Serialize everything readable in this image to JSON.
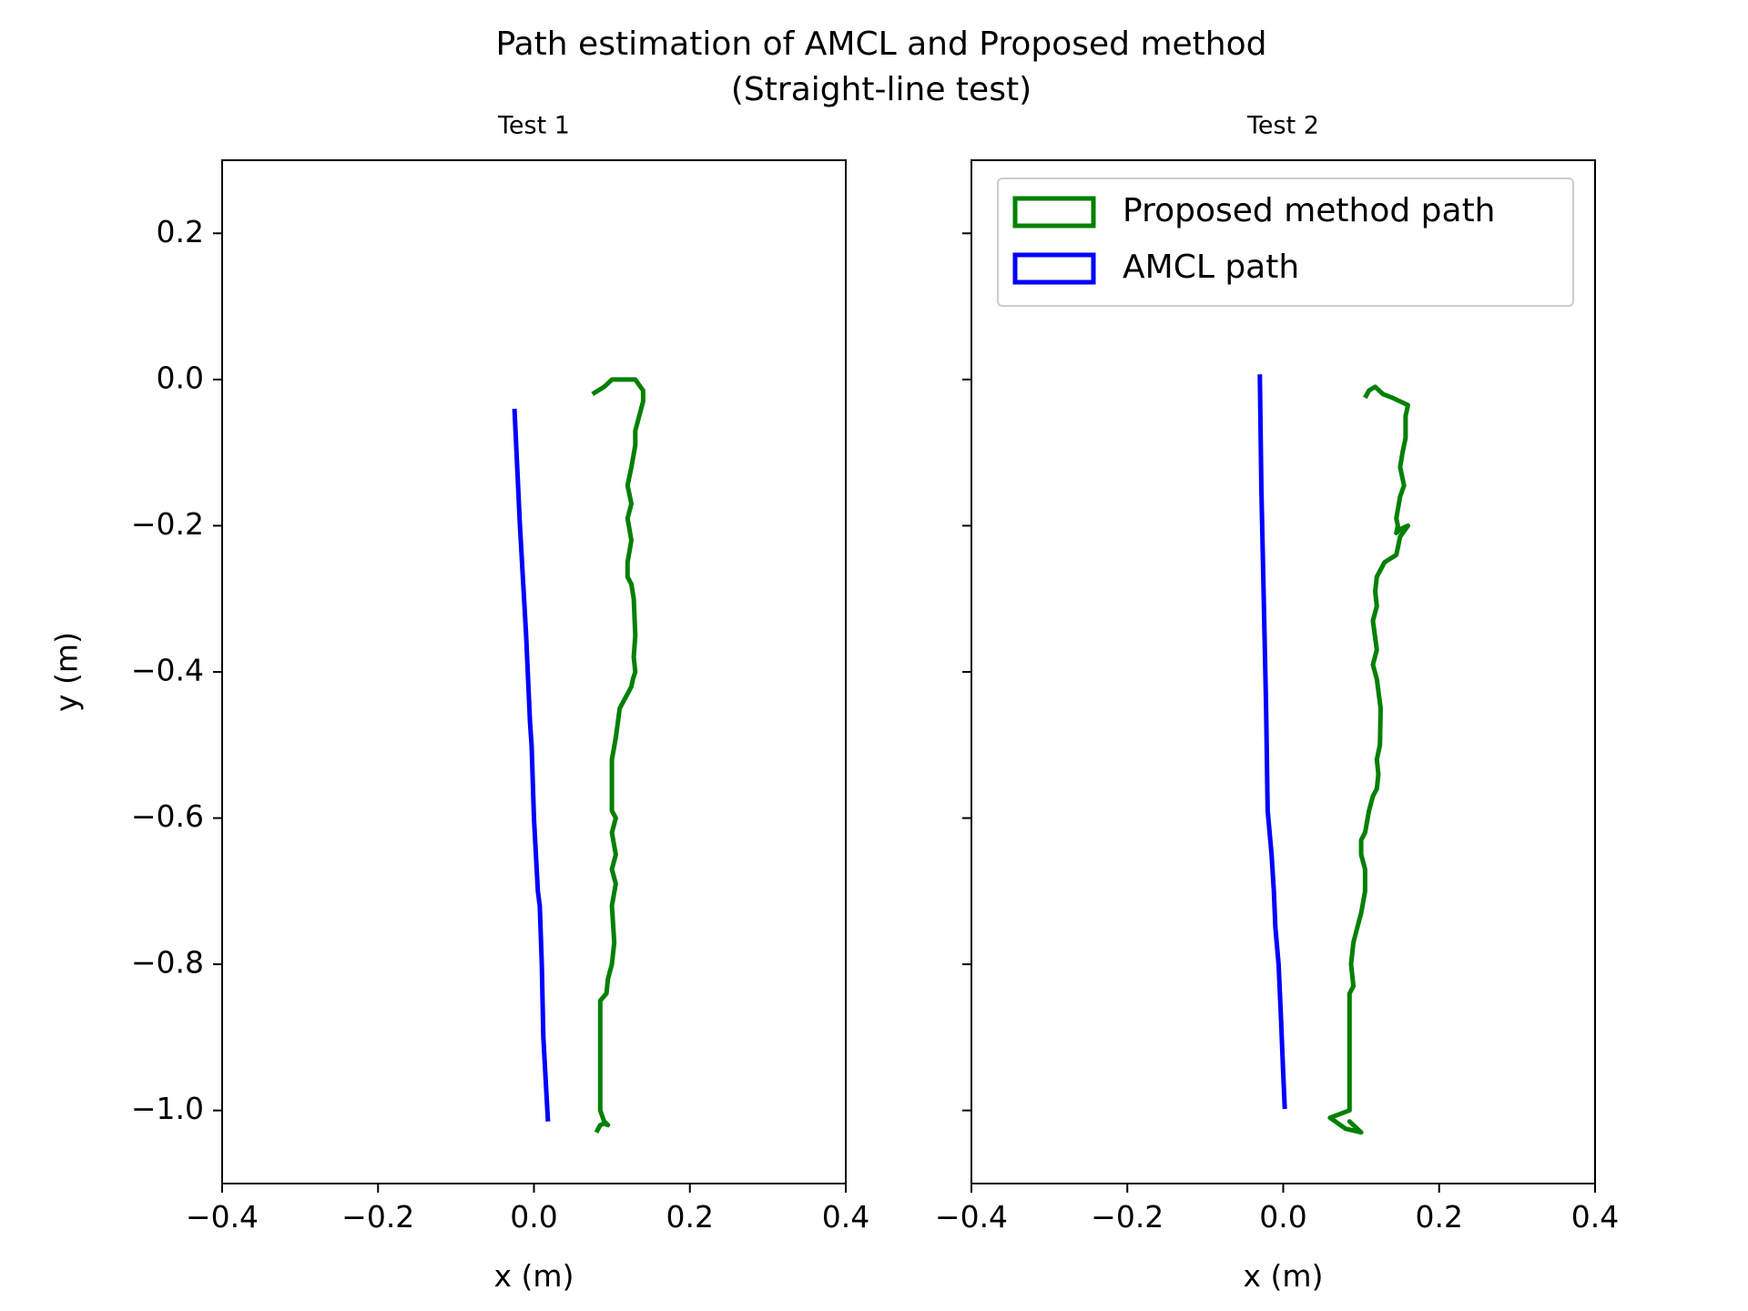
{
  "figure": {
    "title_line1": "Path estimation of AMCL and Proposed method",
    "title_line2": "(Straight-line test)"
  },
  "colors": {
    "proposed": "#008000",
    "amcl": "#0000ff",
    "axes": "#000000"
  },
  "legend": {
    "placement": "upper right of Test 2",
    "items": [
      {
        "label": "Proposed method path",
        "color": "#008000"
      },
      {
        "label": "AMCL path",
        "color": "#0000ff"
      }
    ]
  },
  "chart_data": [
    {
      "type": "line",
      "title": "Test 1",
      "xlabel": "x (m)",
      "ylabel": "y (m)",
      "xlim": [
        -0.4,
        0.4
      ],
      "ylim": [
        -1.1,
        0.3
      ],
      "xticks": [
        -0.4,
        -0.2,
        0.0,
        0.2,
        0.4
      ],
      "xtick_labels": [
        "−0.4",
        "−0.2",
        "0.0",
        "0.2",
        "0.4"
      ],
      "yticks": [
        0.2,
        0.0,
        -0.2,
        -0.4,
        -0.6,
        -0.8,
        -1.0
      ],
      "ytick_labels": [
        "0.2",
        "0.0",
        "−0.2",
        "−0.4",
        "−0.6",
        "−0.8",
        "−1.0"
      ],
      "show_ytick_labels": true,
      "grid": false,
      "series": [
        {
          "name": "Proposed method path",
          "color": "#008000",
          "x": [
            0.075,
            0.09,
            0.1,
            0.115,
            0.13,
            0.14,
            0.14,
            0.135,
            0.13,
            0.13,
            0.125,
            0.12,
            0.125,
            0.12,
            0.125,
            0.12,
            0.12,
            0.125,
            0.128,
            0.13,
            0.128,
            0.13,
            0.127,
            0.125,
            0.12,
            0.11,
            0.105,
            0.1,
            0.1,
            0.1,
            0.105,
            0.1,
            0.105,
            0.1,
            0.105,
            0.1,
            0.103,
            0.1,
            0.095,
            0.093,
            0.085,
            0.085,
            0.085,
            0.085,
            0.09,
            0.095,
            0.09,
            0.085,
            0.08
          ],
          "y": [
            -0.02,
            -0.01,
            0.0,
            0.0,
            0.0,
            -0.015,
            -0.03,
            -0.05,
            -0.07,
            -0.09,
            -0.12,
            -0.145,
            -0.17,
            -0.19,
            -0.22,
            -0.25,
            -0.27,
            -0.28,
            -0.3,
            -0.35,
            -0.38,
            -0.4,
            -0.41,
            -0.42,
            -0.43,
            -0.45,
            -0.49,
            -0.52,
            -0.56,
            -0.59,
            -0.6,
            -0.62,
            -0.65,
            -0.67,
            -0.69,
            -0.72,
            -0.77,
            -0.8,
            -0.82,
            -0.84,
            -0.85,
            -0.9,
            -0.95,
            -1.0,
            -1.015,
            -1.02,
            -1.018,
            -1.02,
            -1.03
          ]
        },
        {
          "name": "AMCL path",
          "color": "#0000ff",
          "x": [
            -0.025,
            -0.018,
            -0.01,
            -0.005,
            -0.003,
            0.0,
            0.005,
            0.0075,
            0.01,
            0.012,
            0.018
          ],
          "y": [
            -0.04,
            -0.2,
            -0.35,
            -0.47,
            -0.5,
            -0.6,
            -0.7,
            -0.72,
            -0.8,
            -0.9,
            -1.015
          ]
        }
      ]
    },
    {
      "type": "line",
      "title": "Test 2",
      "xlabel": "x (m)",
      "ylabel": "",
      "xlim": [
        -0.4,
        0.4
      ],
      "ylim": [
        -1.1,
        0.3
      ],
      "xticks": [
        -0.4,
        -0.2,
        0.0,
        0.2,
        0.4
      ],
      "xtick_labels": [
        "−0.4",
        "−0.2",
        "0.0",
        "0.2",
        "0.4"
      ],
      "yticks": [
        0.2,
        0.0,
        -0.2,
        -0.4,
        -0.6,
        -0.8,
        -1.0
      ],
      "ytick_labels": [],
      "show_ytick_labels": false,
      "grid": false,
      "series": [
        {
          "name": "Proposed method path",
          "color": "#008000",
          "x": [
            0.105,
            0.11,
            0.118,
            0.128,
            0.14,
            0.15,
            0.16,
            0.157,
            0.157,
            0.153,
            0.15,
            0.155,
            0.15,
            0.145,
            0.147,
            0.145,
            0.15,
            0.16,
            0.15,
            0.145,
            0.13,
            0.12,
            0.118,
            0.12,
            0.115,
            0.12,
            0.115,
            0.12,
            0.125,
            0.124,
            0.12,
            0.122,
            0.12,
            0.115,
            0.11,
            0.105,
            0.1,
            0.1,
            0.105,
            0.105,
            0.1,
            0.095,
            0.09,
            0.087,
            0.09,
            0.085,
            0.085,
            0.085,
            0.085,
            0.06,
            0.08,
            0.1,
            0.085,
            0.09
          ],
          "y": [
            -0.025,
            -0.015,
            -0.01,
            -0.02,
            -0.025,
            -0.03,
            -0.035,
            -0.05,
            -0.08,
            -0.1,
            -0.12,
            -0.145,
            -0.16,
            -0.19,
            -0.2,
            -0.21,
            -0.205,
            -0.2,
            -0.215,
            -0.24,
            -0.25,
            -0.27,
            -0.29,
            -0.31,
            -0.33,
            -0.37,
            -0.39,
            -0.41,
            -0.45,
            -0.5,
            -0.52,
            -0.54,
            -0.56,
            -0.57,
            -0.59,
            -0.62,
            -0.63,
            -0.65,
            -0.67,
            -0.7,
            -0.73,
            -0.75,
            -0.77,
            -0.8,
            -0.83,
            -0.84,
            -0.9,
            -0.95,
            -1.0,
            -1.01,
            -1.025,
            -1.03,
            -1.015,
            -1.02
          ]
        },
        {
          "name": "AMCL path",
          "color": "#0000ff",
          "x": [
            -0.03,
            -0.028,
            -0.025,
            -0.022,
            -0.02,
            -0.015,
            -0.012,
            -0.01,
            -0.006,
            -0.003,
            0.0,
            0.002
          ],
          "y": [
            0.007,
            -0.15,
            -0.3,
            -0.45,
            -0.59,
            -0.65,
            -0.7,
            -0.75,
            -0.8,
            -0.87,
            -0.95,
            -0.998
          ]
        }
      ]
    }
  ]
}
